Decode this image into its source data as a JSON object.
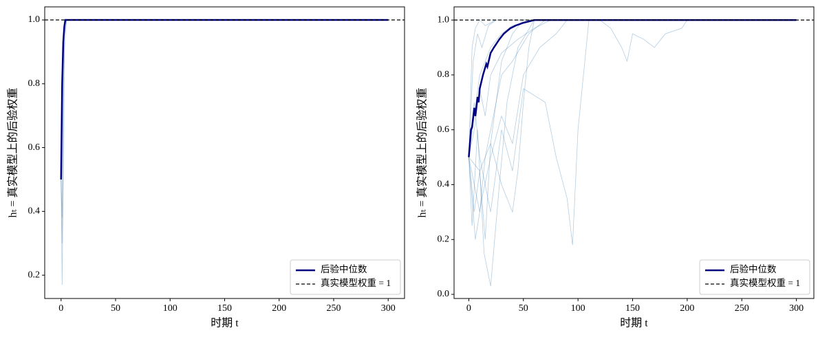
{
  "chart_data": [
    {
      "type": "line",
      "xlabel": "时期 t",
      "ylabel": "hₜ = 真实模型上的后验权重",
      "xlim": [
        -15,
        315
      ],
      "ylim": [
        0.127,
        1.041
      ],
      "xticks": [
        0,
        50,
        100,
        150,
        200,
        250,
        300
      ],
      "yticks": [
        0.2,
        0.4,
        0.6,
        0.8,
        {
          "value": 1,
          "label": "1.0"
        }
      ],
      "legend": "lower right",
      "hline": {
        "name": "真实模型权重 = 1",
        "value": 1,
        "color": "#000000"
      },
      "series": [
        {
          "color": "#4682b4",
          "x": [
            0,
            1,
            2,
            3,
            5,
            300
          ],
          "values": [
            0.5,
            0.3,
            0.6,
            0.95,
            1,
            1
          ]
        },
        {
          "color": "#4682b4",
          "x": [
            0,
            1,
            2,
            3,
            5,
            300
          ],
          "values": [
            0.5,
            0.17,
            0.5,
            0.9,
            1,
            1
          ]
        },
        {
          "color": "#4682b4",
          "x": [
            0,
            1,
            2,
            3,
            5,
            300
          ],
          "values": [
            0.5,
            0.38,
            0.8,
            0.99,
            1,
            1
          ]
        },
        {
          "color": "#4682b4",
          "x": [
            0,
            1,
            2,
            3,
            5,
            300
          ],
          "values": [
            0.5,
            0.7,
            0.95,
            1,
            1,
            1
          ]
        },
        {
          "name": "后验中位数",
          "color": "#000080",
          "x": [
            0,
            1,
            2,
            3,
            4,
            5,
            300
          ],
          "values": [
            0.5,
            0.8,
            0.93,
            0.98,
            1,
            1,
            1
          ]
        }
      ]
    },
    {
      "type": "line",
      "xlabel": "时期 t",
      "ylabel": "hₜ = 真实模型上的后验权重",
      "xlim": [
        -13.5,
        316
      ],
      "ylim": [
        -0.015,
        1.048
      ],
      "xticks": [
        0,
        50,
        100,
        150,
        200,
        250,
        300
      ],
      "yticks": [
        {
          "value": 0,
          "label": "0.0"
        },
        0.2,
        0.4,
        0.6,
        0.8,
        {
          "value": 1,
          "label": "1.0"
        }
      ],
      "legend": "lower right",
      "hline": {
        "name": "真实模型权重 = 1",
        "value": 1,
        "color": "#000000"
      },
      "series": [
        {
          "color": "#4682b4",
          "x": [
            0,
            5,
            10,
            15,
            20,
            25,
            30,
            40,
            50,
            60,
            300
          ],
          "values": [
            0.5,
            0.3,
            0.45,
            0.2,
            0.55,
            0.7,
            0.85,
            0.95,
            1,
            1,
            1
          ]
        },
        {
          "color": "#4682b4",
          "x": [
            0,
            3,
            8,
            14,
            20,
            28,
            35,
            45,
            60,
            300
          ],
          "values": [
            0.5,
            0.25,
            0.6,
            0.15,
            0.03,
            0.4,
            0.7,
            0.9,
            1,
            1
          ]
        },
        {
          "color": "#4682b4",
          "x": [
            0,
            5,
            10,
            20,
            30,
            40,
            50,
            70,
            80,
            90,
            95,
            100,
            110,
            300
          ],
          "values": [
            0.5,
            0.7,
            0.5,
            0.3,
            0.6,
            0.45,
            0.75,
            0.7,
            0.5,
            0.35,
            0.18,
            0.6,
            1,
            1
          ]
        },
        {
          "color": "#4682b4",
          "x": [
            0,
            10,
            20,
            30,
            40,
            60,
            80,
            100,
            120,
            130,
            140,
            145,
            150,
            160,
            170,
            180,
            195,
            200,
            300
          ],
          "values": [
            0.5,
            0.8,
            0.9,
            0.95,
            0.98,
            1,
            1,
            1,
            1,
            0.97,
            0.9,
            0.85,
            0.95,
            0.93,
            0.9,
            0.95,
            0.97,
            1,
            1
          ]
        },
        {
          "color": "#4682b4",
          "x": [
            0,
            4,
            8,
            12,
            18,
            25,
            35,
            50,
            300
          ],
          "values": [
            0.5,
            0.85,
            0.95,
            0.9,
            0.98,
            1,
            1,
            1,
            1
          ]
        },
        {
          "color": "#4682b4",
          "x": [
            0,
            5,
            10,
            15,
            20,
            30,
            40,
            55,
            70,
            300
          ],
          "values": [
            0.5,
            0.4,
            0.3,
            0.5,
            0.6,
            0.8,
            0.85,
            0.95,
            1,
            1
          ]
        },
        {
          "color": "#4682b4",
          "x": [
            0,
            6,
            12,
            20,
            30,
            40,
            50,
            65,
            80,
            90,
            300
          ],
          "values": [
            0.5,
            0.2,
            0.35,
            0.5,
            0.65,
            0.55,
            0.8,
            0.9,
            0.95,
            1,
            1
          ]
        },
        {
          "color": "#4682b4",
          "x": [
            0,
            3,
            6,
            10,
            15,
            25,
            40,
            300
          ],
          "values": [
            0.5,
            0.9,
            0.97,
            1,
            0.98,
            1,
            1,
            1
          ]
        },
        {
          "color": "#4682b4",
          "x": [
            0,
            5,
            10,
            15,
            20,
            30,
            45,
            60,
            75,
            300
          ],
          "values": [
            0.5,
            0.6,
            0.75,
            0.65,
            0.8,
            0.88,
            0.93,
            0.97,
            1,
            1
          ]
        },
        {
          "color": "#4682b4",
          "x": [
            0,
            10,
            20,
            30,
            40,
            45,
            50,
            55,
            60,
            300
          ],
          "values": [
            0.5,
            0.45,
            0.55,
            0.4,
            0.3,
            0.45,
            0.7,
            0.9,
            1,
            1
          ]
        },
        {
          "name": "后验中位数",
          "color": "#000080",
          "x": [
            0,
            2,
            3,
            5,
            6,
            8,
            9,
            10,
            13,
            16,
            17,
            20,
            23,
            28,
            32,
            38,
            43,
            50,
            60,
            300
          ],
          "values": [
            0.5,
            0.6,
            0.61,
            0.68,
            0.65,
            0.72,
            0.7,
            0.75,
            0.8,
            0.84,
            0.83,
            0.88,
            0.9,
            0.93,
            0.95,
            0.97,
            0.98,
            0.99,
            1,
            1
          ]
        }
      ]
    }
  ]
}
